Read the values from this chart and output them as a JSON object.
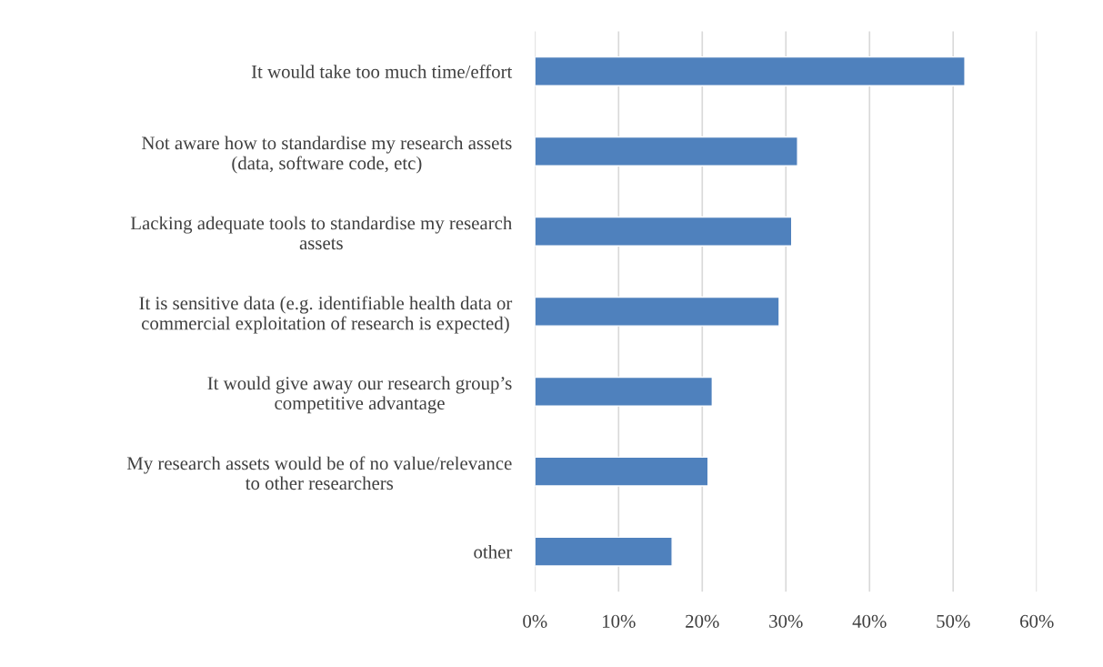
{
  "chart_data": {
    "type": "bar",
    "orientation": "horizontal",
    "categories": [
      "It would take too much time/effort",
      "Not aware how to standardise my research assets\n(data, software code, etc)",
      "Lacking adequate tools to standardise my research\nassets",
      "It is sensitive data (e.g. identifiable health data or\ncommercial exploitation of research is expected)",
      "It would give away our research group’s\ncompetitive advantage",
      "My research assets would be of no value/relevance\nto other researchers",
      "other"
    ],
    "values": [
      51.4,
      31.4,
      30.7,
      29.2,
      21.2,
      20.7,
      16.4
    ],
    "color": "#4f81bd",
    "xlim": [
      0,
      60
    ],
    "xticks": [
      {
        "value": 0,
        "label": "0%"
      },
      {
        "value": 10,
        "label": "10%"
      },
      {
        "value": 20,
        "label": "20%"
      },
      {
        "value": 30,
        "label": "30%"
      },
      {
        "value": 40,
        "label": "40%"
      },
      {
        "value": 50,
        "label": "50%"
      },
      {
        "value": 60,
        "label": "60%"
      }
    ],
    "grid": "x"
  }
}
